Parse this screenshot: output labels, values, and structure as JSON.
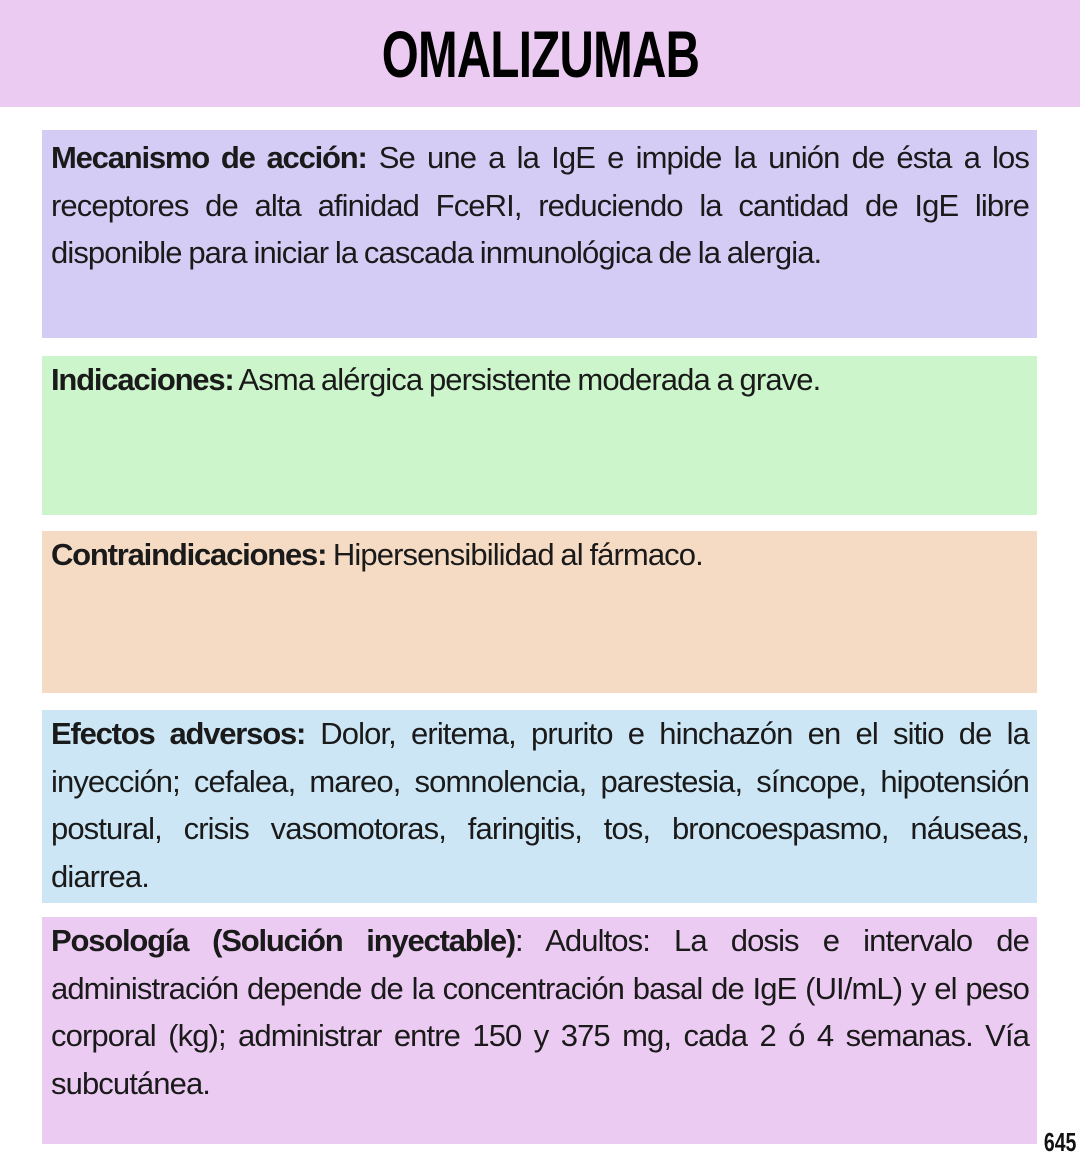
{
  "title": "OMALIZUMAB",
  "sections": [
    {
      "label": "Mecanismo de acción:",
      "text": " Se une a la IgE e impide la unión de ésta a los receptores de alta afinidad FceRI, reduciendo la cantidad de IgE libre disponible para iniciar la cascada inmunológica de la alergia.",
      "color": "#d4ccf5"
    },
    {
      "label": "Indicaciones:",
      "text": "  Asma alérgica persistente moderada a grave.",
      "color": "#ccf5cc"
    },
    {
      "label": "Contraindicaciones:",
      "text": " Hipersensibilidad al fármaco.",
      "color": "#f5dbc4"
    },
    {
      "label": "Efectos adversos:",
      "text": " Dolor, eritema, prurito e hinchazón en el sitio de la inyección; cefalea, mareo, somnolencia, parestesia, síncope, hipotensión postural, crisis vasomotoras, faringitis, tos, broncoespasmo, náuseas, diarrea.",
      "color": "#cce6f5"
    },
    {
      "label": "Posología (Solución inyectable)",
      "text": ": Adultos: La dosis e intervalo de administración depende de la concentración basal de IgE (UI/mL) y el peso corporal (kg); administrar entre 150 y 375 mg, cada 2 ó 4 semanas. Vía subcutánea.",
      "color": "#eccbf3"
    }
  ],
  "page_number": "645"
}
